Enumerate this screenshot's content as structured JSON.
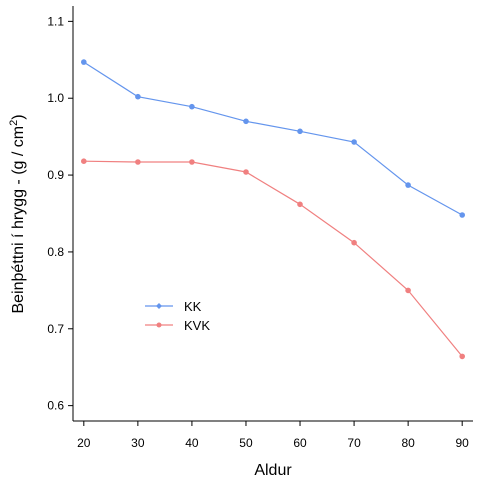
{
  "chart_data": {
    "type": "line",
    "title": "",
    "xlabel": "Aldur",
    "ylabel_main": "Beinþéttni í hrygg - (g / cm",
    "ylabel_sup": "2",
    "ylabel_end": ")",
    "x": [
      20,
      30,
      40,
      50,
      60,
      70,
      80,
      90
    ],
    "xlim": [
      18,
      92
    ],
    "ylim": [
      0.58,
      1.12
    ],
    "xticks": [
      "20",
      "30",
      "40",
      "50",
      "60",
      "70",
      "80",
      "90"
    ],
    "yticks": [
      "0.6",
      "0.7",
      "0.8",
      "0.9",
      "1.0",
      "1.1"
    ],
    "grid": false,
    "legend_position": "bottom-left",
    "series": [
      {
        "name": "KK",
        "color": "#6495ED",
        "marker": "diamond",
        "values": [
          1.047,
          1.002,
          0.989,
          0.97,
          0.957,
          0.943,
          0.887,
          0.848
        ]
      },
      {
        "name": "KVK",
        "color": "#F08080",
        "marker": "circle",
        "values": [
          0.918,
          0.917,
          0.917,
          0.904,
          0.862,
          0.812,
          0.75,
          0.664
        ]
      }
    ]
  }
}
